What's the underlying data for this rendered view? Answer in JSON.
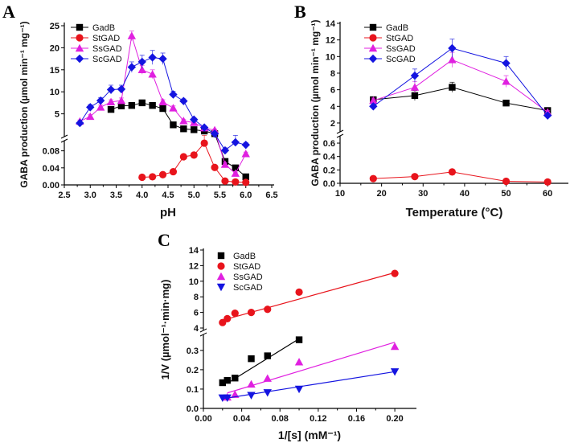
{
  "chart_data": [
    {
      "panel": "A",
      "type": "line",
      "xlabel": "pH",
      "ylabel": "GABA production (µmol min⁻¹ mg⁻¹)",
      "xlim": [
        2.5,
        6.5
      ],
      "x_ticks": [
        "2.5",
        "3.0",
        "3.5",
        "4.0",
        "4.5",
        "5.0",
        "5.5",
        "6.0",
        "6.5"
      ],
      "y_axis_break": true,
      "y_ticks_upper": [
        "5",
        "10",
        "15",
        "20",
        "25"
      ],
      "y_ticks_lower": [
        "0.00",
        "0.04",
        "0.08"
      ],
      "legend": "top-left",
      "series": [
        {
          "name": "GadB",
          "color": "#000000",
          "marker": "square",
          "x": [
            3.4,
            3.6,
            3.8,
            4.0,
            4.2,
            4.4,
            4.6,
            4.8,
            5.0,
            5.2,
            5.4,
            5.6,
            5.8,
            6.0
          ],
          "y": [
            6.0,
            6.8,
            6.9,
            7.5,
            6.9,
            6.2,
            2.5,
            1.6,
            1.4,
            1.1,
            0.5,
            0.055,
            0.04,
            0.019
          ],
          "err": [
            0.4,
            0.4,
            0.3,
            0.4,
            0.3,
            0.4,
            0.2,
            0.2,
            0.2,
            0.2,
            0.1,
            0.004,
            0.003,
            0.002
          ]
        },
        {
          "name": "StGAD",
          "color": "#e8141c",
          "marker": "circle",
          "x": [
            4.0,
            4.2,
            4.4,
            4.6,
            4.8,
            5.0,
            5.2,
            5.4,
            5.6,
            5.8,
            6.0
          ],
          "y": [
            0.018,
            0.019,
            0.024,
            0.031,
            0.066,
            0.07,
            0.098,
            0.041,
            0.009,
            0.007,
            0.006
          ],
          "err": [
            0.002,
            0.002,
            0.003,
            0.003,
            0.005,
            0.004,
            0.006,
            0.003,
            0.001,
            0.001,
            0.001
          ]
        },
        {
          "name": "SsGAD",
          "color": "#e020e0",
          "marker": "triangle",
          "x": [
            2.8,
            3.0,
            3.2,
            3.4,
            3.6,
            3.8,
            4.0,
            4.2,
            4.4,
            4.6,
            4.8,
            5.0,
            5.2,
            5.4,
            5.6,
            5.8,
            6.0
          ],
          "y": [
            3.3,
            4.4,
            6.5,
            7.7,
            8.0,
            22.7,
            15.0,
            14.0,
            7.7,
            6.3,
            3.4,
            3.0,
            1.8,
            1.3,
            0.048,
            0.027,
            0.073
          ],
          "err": [
            0.3,
            0.4,
            0.5,
            0.5,
            0.6,
            1.1,
            1.0,
            1.0,
            0.5,
            0.5,
            0.3,
            0.3,
            0.2,
            0.2,
            0.004,
            0.003,
            0.004
          ]
        },
        {
          "name": "ScGAD",
          "color": "#1414e0",
          "marker": "diamond",
          "x": [
            2.8,
            3.0,
            3.2,
            3.4,
            3.6,
            3.8,
            4.0,
            4.2,
            4.4,
            4.6,
            4.8,
            5.0,
            5.2,
            5.4,
            5.6,
            5.8,
            6.0
          ],
          "y": [
            2.9,
            6.5,
            8.0,
            10.5,
            10.6,
            15.6,
            16.8,
            17.8,
            17.5,
            9.4,
            7.9,
            3.7,
            1.9,
            0.5,
            0.081,
            0.1,
            0.094
          ],
          "err": [
            0.3,
            0.6,
            0.7,
            1.0,
            0.9,
            1.2,
            1.5,
            1.6,
            1.3,
            0.7,
            0.5,
            0.4,
            0.2,
            0.1,
            0.006,
            0.004,
            0.005
          ]
        }
      ]
    },
    {
      "panel": "B",
      "type": "line",
      "xlabel": "Temperature (°C)",
      "ylabel": "GABA production (µmol min⁻¹ mg⁻¹)",
      "xlim": [
        10,
        65
      ],
      "x_ticks": [
        "10",
        "20",
        "30",
        "40",
        "50",
        "60"
      ],
      "y_axis_break": true,
      "y_ticks_upper": [
        "2",
        "4",
        "6",
        "8",
        "10",
        "12",
        "14"
      ],
      "y_ticks_lower": [
        "0.0",
        "0.2",
        "0.4",
        "0.6"
      ],
      "legend": "top-left",
      "series": [
        {
          "name": "GadB",
          "color": "#000000",
          "marker": "square",
          "x": [
            18,
            28,
            37,
            50,
            60
          ],
          "y": [
            4.8,
            5.3,
            6.3,
            4.4,
            3.5
          ],
          "err": [
            0.3,
            0.6,
            0.6,
            0.3,
            0.3
          ]
        },
        {
          "name": "StGAD",
          "color": "#e8141c",
          "marker": "circle",
          "x": [
            18,
            28,
            37,
            50,
            60
          ],
          "y": [
            0.07,
            0.1,
            0.17,
            0.03,
            0.02
          ],
          "err": [
            0.005,
            0.008,
            0.01,
            0.003,
            0.002
          ]
        },
        {
          "name": "SsGAD",
          "color": "#e020e0",
          "marker": "triangle",
          "x": [
            18,
            28,
            37,
            50,
            60
          ],
          "y": [
            4.7,
            6.3,
            9.6,
            7.0,
            3.3
          ],
          "err": [
            0.3,
            0.7,
            0.9,
            0.7,
            0.2
          ]
        },
        {
          "name": "ScGAD",
          "color": "#1414e0",
          "marker": "diamond",
          "x": [
            18,
            28,
            37,
            50,
            60
          ],
          "y": [
            4.0,
            7.7,
            11.0,
            9.2,
            2.9
          ],
          "err": [
            0.3,
            0.8,
            1.1,
            0.8,
            0.2
          ]
        }
      ]
    },
    {
      "panel": "C",
      "type": "scatter",
      "xlabel": "1/[s] (mM⁻¹)",
      "ylabel": "1/V (µmol⁻¹·min·mg)",
      "xlim": [
        0,
        0.22
      ],
      "x_ticks": [
        "0.00",
        "0.04",
        "0.08",
        "0.12",
        "0.16",
        "0.20"
      ],
      "y_axis_break": true,
      "y_ticks_upper": [
        "4",
        "6",
        "8",
        "10",
        "12",
        "14"
      ],
      "y_ticks_lower": [
        "0.0",
        "0.1",
        "0.2",
        "0.3"
      ],
      "legend": "top-left",
      "series": [
        {
          "name": "GadB",
          "color": "#000000",
          "marker": "square",
          "x": [
            0.02,
            0.025,
            0.033,
            0.05,
            0.067,
            0.1
          ],
          "y": [
            0.133,
            0.145,
            0.157,
            0.257,
            0.272,
            0.355
          ],
          "fit": [
            [
              0.025,
              0.13
            ],
            [
              0.1,
              0.36
            ]
          ]
        },
        {
          "name": "StGAD",
          "color": "#e8141c",
          "marker": "circle",
          "x": [
            0.02,
            0.025,
            0.033,
            0.05,
            0.067,
            0.1,
            0.2
          ],
          "y": [
            4.7,
            5.2,
            5.9,
            6.0,
            6.4,
            8.6,
            11.0
          ],
          "fit": [
            [
              0.02,
              5.0
            ],
            [
              0.2,
              11.1
            ]
          ]
        },
        {
          "name": "SsGAD",
          "color": "#e020e0",
          "marker": "triangle",
          "x": [
            0.025,
            0.033,
            0.05,
            0.067,
            0.1,
            0.2
          ],
          "y": [
            0.058,
            0.072,
            0.125,
            0.155,
            0.24,
            0.32
          ],
          "fit": [
            [
              0.025,
              0.08
            ],
            [
              0.2,
              0.342
            ]
          ]
        },
        {
          "name": "ScGAD",
          "color": "#1414e0",
          "marker": "triangle-down",
          "x": [
            0.02,
            0.025,
            0.05,
            0.067,
            0.1,
            0.2
          ],
          "y": [
            0.055,
            0.055,
            0.068,
            0.082,
            0.1,
            0.19
          ],
          "fit": [
            [
              0.02,
              0.05
            ],
            [
              0.2,
              0.19
            ]
          ]
        }
      ]
    }
  ]
}
